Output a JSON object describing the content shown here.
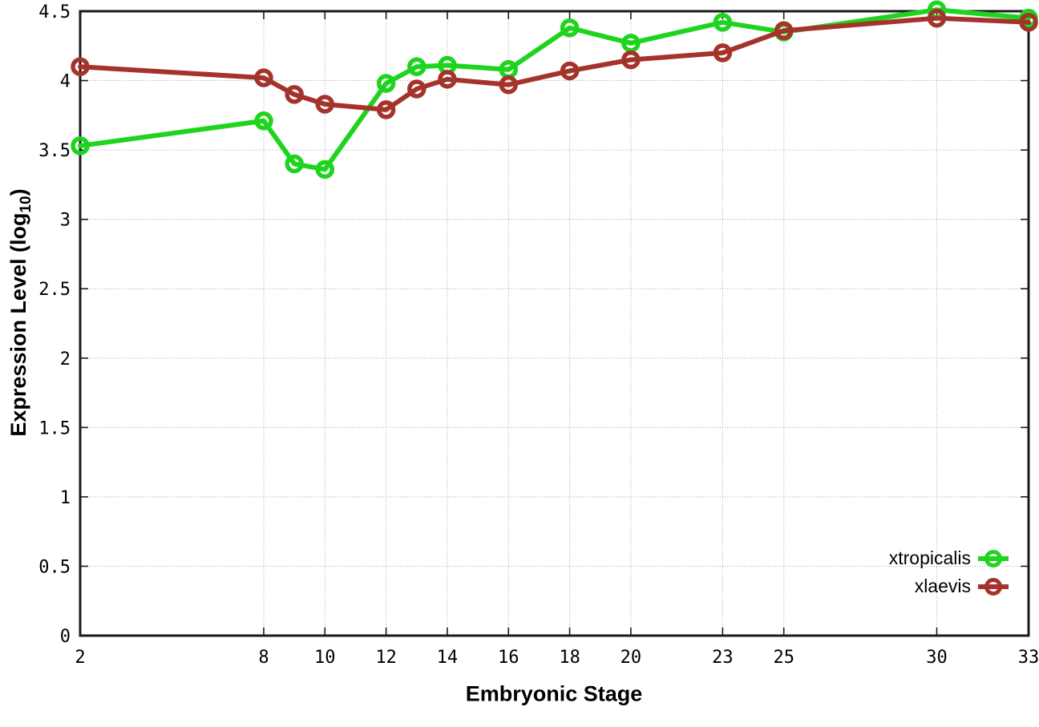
{
  "chart_data": {
    "type": "line",
    "title": "",
    "xlabel": "Embryonic Stage",
    "ylabel_prefix": "Expression Level (log",
    "ylabel_sub": "10",
    "ylabel_suffix": ")",
    "x": [
      2,
      8,
      9,
      10,
      12,
      13,
      14,
      16,
      18,
      20,
      23,
      25,
      30,
      33
    ],
    "series": [
      {
        "name": "xtropicalis",
        "color": "#1ed41e",
        "values": [
          3.53,
          3.71,
          3.4,
          3.36,
          3.98,
          4.1,
          4.11,
          4.08,
          4.38,
          4.27,
          4.42,
          4.35,
          4.51,
          4.45
        ]
      },
      {
        "name": "xlaevis",
        "color": "#a4342b",
        "values": [
          4.1,
          4.02,
          3.9,
          3.83,
          3.79,
          3.94,
          4.01,
          3.97,
          4.07,
          4.15,
          4.2,
          4.36,
          4.45,
          4.42
        ]
      }
    ],
    "xticks": [
      {
        "v": 2,
        "label": "2"
      },
      {
        "v": 8,
        "label": "8"
      },
      {
        "v": 10,
        "label": "10"
      },
      {
        "v": 12,
        "label": "12"
      },
      {
        "v": 14,
        "label": "14"
      },
      {
        "v": 16,
        "label": "16"
      },
      {
        "v": 18,
        "label": "18"
      },
      {
        "v": 20,
        "label": "20"
      },
      {
        "v": 23,
        "label": "23"
      },
      {
        "v": 25,
        "label": "25"
      },
      {
        "v": 30,
        "label": "30"
      },
      {
        "v": 33,
        "label": "33"
      }
    ],
    "yticks": [
      {
        "v": 0,
        "label": "0"
      },
      {
        "v": 0.5,
        "label": "0.5"
      },
      {
        "v": 1,
        "label": "1"
      },
      {
        "v": 1.5,
        "label": "1.5"
      },
      {
        "v": 2,
        "label": "2"
      },
      {
        "v": 2.5,
        "label": "2.5"
      },
      {
        "v": 3,
        "label": "3"
      },
      {
        "v": 3.5,
        "label": "3.5"
      },
      {
        "v": 4,
        "label": "4"
      },
      {
        "v": 4.5,
        "label": "4.5"
      }
    ],
    "xlim": [
      2,
      33
    ],
    "ylim": [
      0,
      4.5
    ],
    "grid": true,
    "grid_color": "#a8a8a8",
    "axis_color": "#1a1a1a",
    "legend_position": "inside-bottom-right"
  }
}
